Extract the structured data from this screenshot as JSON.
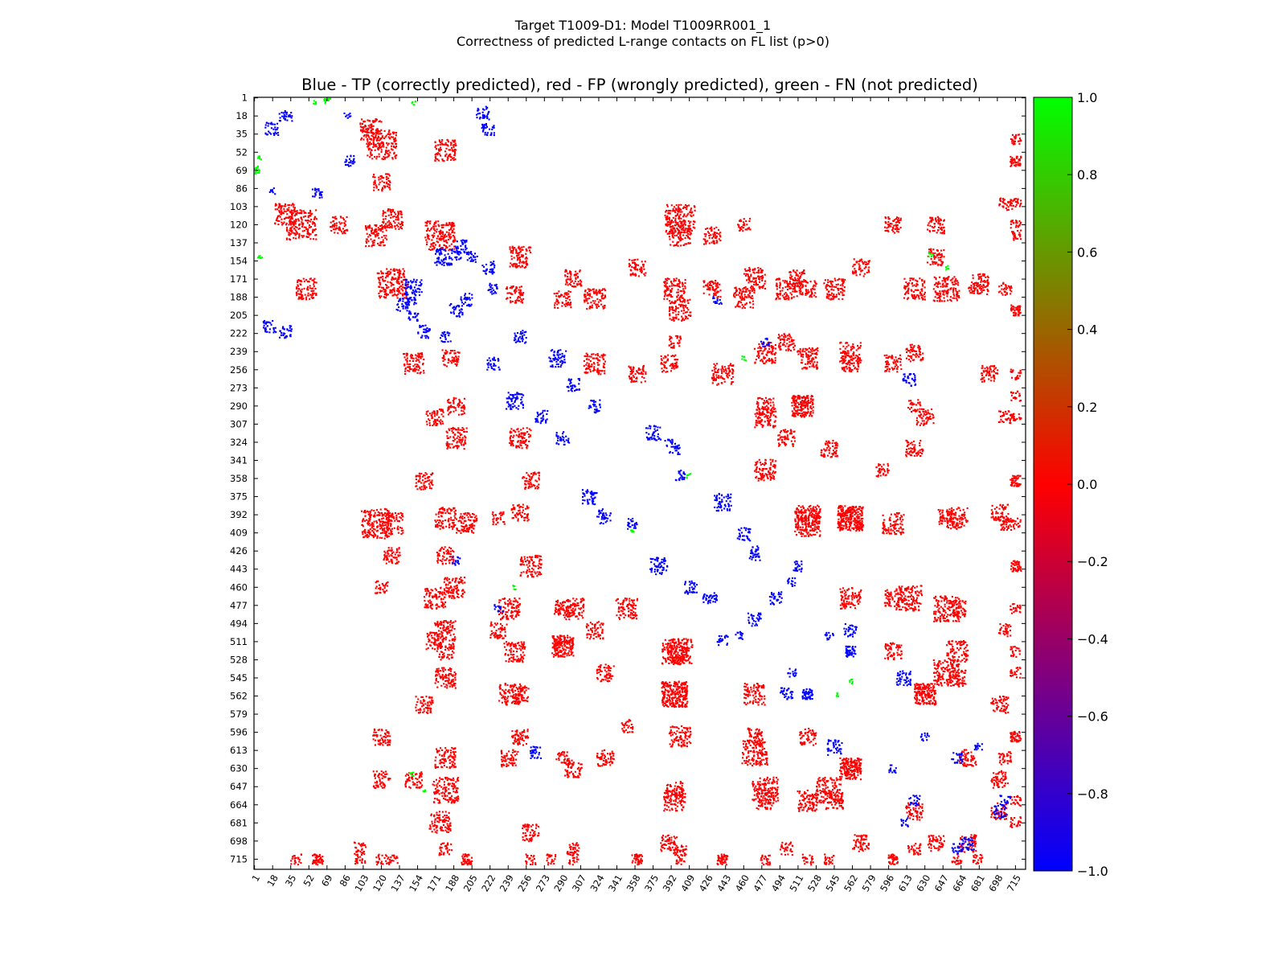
{
  "chart_data": {
    "type": "heatmap",
    "title": "Target T1009-D1: Model T1009RR001_1",
    "subtitle": "Correctness of predicted L-range contacts on FL list (p>0)",
    "axes_title": "Blue - TP (correctly predicted), red - FP (wrongly predicted), green - FN (not predicted)",
    "xlabel": "",
    "ylabel": "",
    "residue_range": [
      1,
      724
    ],
    "x_ticks": [
      "1",
      "18",
      "35",
      "52",
      "69",
      "86",
      "103",
      "120",
      "137",
      "154",
      "171",
      "188",
      "205",
      "222",
      "239",
      "256",
      "273",
      "290",
      "307",
      "324",
      "341",
      "358",
      "375",
      "392",
      "409",
      "426",
      "443",
      "460",
      "477",
      "494",
      "511",
      "528",
      "545",
      "562",
      "579",
      "596",
      "613",
      "630",
      "647",
      "664",
      "681",
      "698",
      "715"
    ],
    "y_ticks": [
      "1",
      "18",
      "35",
      "52",
      "69",
      "86",
      "103",
      "120",
      "137",
      "154",
      "171",
      "188",
      "205",
      "222",
      "239",
      "256",
      "273",
      "290",
      "307",
      "324",
      "341",
      "358",
      "375",
      "392",
      "409",
      "426",
      "443",
      "460",
      "477",
      "494",
      "511",
      "528",
      "545",
      "562",
      "579",
      "596",
      "613",
      "630",
      "647",
      "664",
      "681",
      "698",
      "715"
    ],
    "colorbar": {
      "range": [
        -1.0,
        1.0
      ],
      "ticks": [
        "1.0",
        "0.8",
        "0.6",
        "0.4",
        "0.2",
        "0.0",
        "−0.2",
        "−0.4",
        "−0.6",
        "−0.8",
        "−1.0"
      ],
      "colors": {
        "low": "#0000ff",
        "mid": "#ff0000",
        "high": "#00ff00"
      }
    },
    "series": [
      {
        "value": -1,
        "color": "#0000ff",
        "clusters": [
          [
            17,
            30,
            6
          ],
          [
            15,
            215,
            6
          ],
          [
            30,
            220,
            6
          ],
          [
            17,
            88,
            3
          ],
          [
            60,
            90,
            5
          ],
          [
            140,
            195,
            6
          ],
          [
            150,
            178,
            8
          ],
          [
            160,
            220,
            6
          ],
          [
            180,
            225,
            5
          ],
          [
            190,
            148,
            5
          ],
          [
            200,
            190,
            6
          ],
          [
            205,
            150,
            5
          ],
          [
            225,
            250,
            6
          ],
          [
            245,
            285,
            8
          ],
          [
            270,
            300,
            6
          ],
          [
            290,
            320,
            6
          ],
          [
            315,
            375,
            7
          ],
          [
            330,
            395,
            5
          ],
          [
            355,
            400,
            5
          ],
          [
            380,
            440,
            8
          ],
          [
            410,
            460,
            6
          ],
          [
            430,
            470,
            5
          ],
          [
            440,
            510,
            5
          ],
          [
            470,
            490,
            6
          ],
          [
            500,
            560,
            6
          ],
          [
            505,
            540,
            4
          ],
          [
            520,
            560,
            5
          ],
          [
            545,
            610,
            7
          ],
          [
            560,
            520,
            5
          ],
          [
            470,
            425,
            4
          ],
          [
            455,
            505,
            4
          ],
          [
            620,
            660,
            5
          ],
          [
            630,
            600,
            4
          ],
          [
            660,
            705,
            5
          ],
          [
            700,
            670,
            6
          ],
          [
            680,
            610,
            4
          ],
          [
            615,
            265,
            6
          ],
          [
            190,
            435,
            4
          ],
          [
            230,
            480,
            4
          ],
          [
            390,
            325,
            4
          ]
        ]
      },
      {
        "value": 1,
        "color": "#00ff00",
        "clusters": [
          [
            2,
            66,
            2
          ],
          [
            4,
            68,
            2
          ],
          [
            57,
            5,
            2
          ],
          [
            70,
            3,
            2
          ],
          [
            150,
            6,
            2
          ],
          [
            355,
            408,
            2
          ],
          [
            650,
            160,
            2
          ],
          [
            460,
            245,
            2
          ],
          [
            560,
            548,
            2
          ],
          [
            148,
            635,
            2
          ]
        ]
      },
      {
        "value": 0,
        "color": "#ff0000",
        "clusters": [
          [
            45,
            120,
            14
          ],
          [
            50,
            180,
            10
          ],
          [
            110,
            30,
            10
          ],
          [
            115,
            130,
            10
          ],
          [
            120,
            80,
            8
          ],
          [
            130,
            175,
            14
          ],
          [
            150,
            250,
            10
          ],
          [
            185,
            245,
            8
          ],
          [
            170,
            300,
            8
          ],
          [
            190,
            320,
            10
          ],
          [
            115,
            400,
            14
          ],
          [
            180,
            395,
            10
          ],
          [
            188,
            460,
            10
          ],
          [
            180,
            500,
            10
          ],
          [
            250,
            320,
            10
          ],
          [
            250,
            390,
            8
          ],
          [
            240,
            480,
            10
          ],
          [
            245,
            520,
            10
          ],
          [
            290,
            190,
            8
          ],
          [
            290,
            515,
            10
          ],
          [
            330,
            540,
            8
          ],
          [
            300,
            480,
            10
          ],
          [
            360,
            160,
            8
          ],
          [
            360,
            260,
            8
          ],
          [
            400,
            130,
            10
          ],
          [
            400,
            200,
            10
          ],
          [
            400,
            520,
            12
          ],
          [
            395,
            560,
            12
          ],
          [
            430,
            180,
            8
          ],
          [
            440,
            260,
            10
          ],
          [
            470,
            170,
            10
          ],
          [
            480,
            290,
            8
          ],
          [
            480,
            350,
            10
          ],
          [
            500,
            230,
            8
          ],
          [
            510,
            170,
            8
          ],
          [
            515,
            290,
            10
          ],
          [
            520,
            395,
            12
          ],
          [
            545,
            180,
            10
          ],
          [
            560,
            240,
            10
          ],
          [
            560,
            395,
            12
          ],
          [
            560,
            470,
            10
          ],
          [
            560,
            630,
            10
          ],
          [
            600,
            250,
            8
          ],
          [
            620,
            180,
            10
          ],
          [
            615,
            470,
            12
          ],
          [
            630,
            560,
            10
          ],
          [
            650,
            180,
            12
          ],
          [
            650,
            480,
            12
          ],
          [
            650,
            540,
            12
          ],
          [
            650,
            395,
            8
          ],
          [
            670,
            620,
            8
          ],
          [
            690,
            260,
            8
          ],
          [
            705,
            620,
            6
          ],
          [
            395,
            660,
            10
          ],
          [
            480,
            660,
            8
          ],
          [
            520,
            660,
            10
          ],
          [
            570,
            700,
            8
          ],
          [
            640,
            700,
            8
          ],
          [
            670,
            700,
            8
          ],
          [
            705,
            100,
            6
          ],
          [
            705,
            180,
            6
          ],
          [
            705,
            300,
            6
          ],
          [
            705,
            400,
            6
          ],
          [
            705,
            500,
            6
          ],
          [
            715,
            60,
            5
          ],
          [
            715,
            120,
            5
          ],
          [
            715,
            200,
            5
          ],
          [
            715,
            280,
            5
          ],
          [
            715,
            360,
            5
          ],
          [
            715,
            440,
            5
          ],
          [
            715,
            520,
            5
          ],
          [
            715,
            600,
            5
          ],
          [
            715,
            680,
            5
          ],
          [
            60,
            715,
            5
          ],
          [
            130,
            715,
            5
          ],
          [
            200,
            715,
            5
          ],
          [
            300,
            715,
            5
          ],
          [
            360,
            715,
            5
          ],
          [
            400,
            715,
            5
          ],
          [
            480,
            715,
            5
          ],
          [
            540,
            715,
            5
          ],
          [
            600,
            715,
            5
          ],
          [
            660,
            715,
            5
          ],
          [
            40,
            715,
            5
          ],
          [
            100,
            715,
            5
          ],
          [
            260,
            715,
            5
          ],
          [
            440,
            715,
            5
          ],
          [
            230,
            395,
            6
          ],
          [
            160,
            570,
            8
          ],
          [
            150,
            640,
            8
          ],
          [
            175,
            680,
            10
          ],
          [
            180,
            520,
            8
          ],
          [
            430,
            130,
            8
          ],
          [
            460,
            120,
            6
          ],
          [
            600,
            120,
            8
          ],
          [
            640,
            120,
            8
          ],
          [
            620,
            290,
            6
          ],
          [
            500,
            320,
            8
          ],
          [
            300,
            630,
            8
          ],
          [
            330,
            620,
            8
          ],
          [
            250,
            560,
            8
          ],
          [
            240,
            620,
            8
          ],
          [
            350,
            590,
            6
          ],
          [
            390,
            700,
            8
          ],
          [
            470,
            600,
            8
          ],
          [
            520,
            600,
            8
          ],
          [
            545,
            660,
            8
          ],
          [
            600,
            400,
            10
          ]
        ]
      }
    ]
  }
}
